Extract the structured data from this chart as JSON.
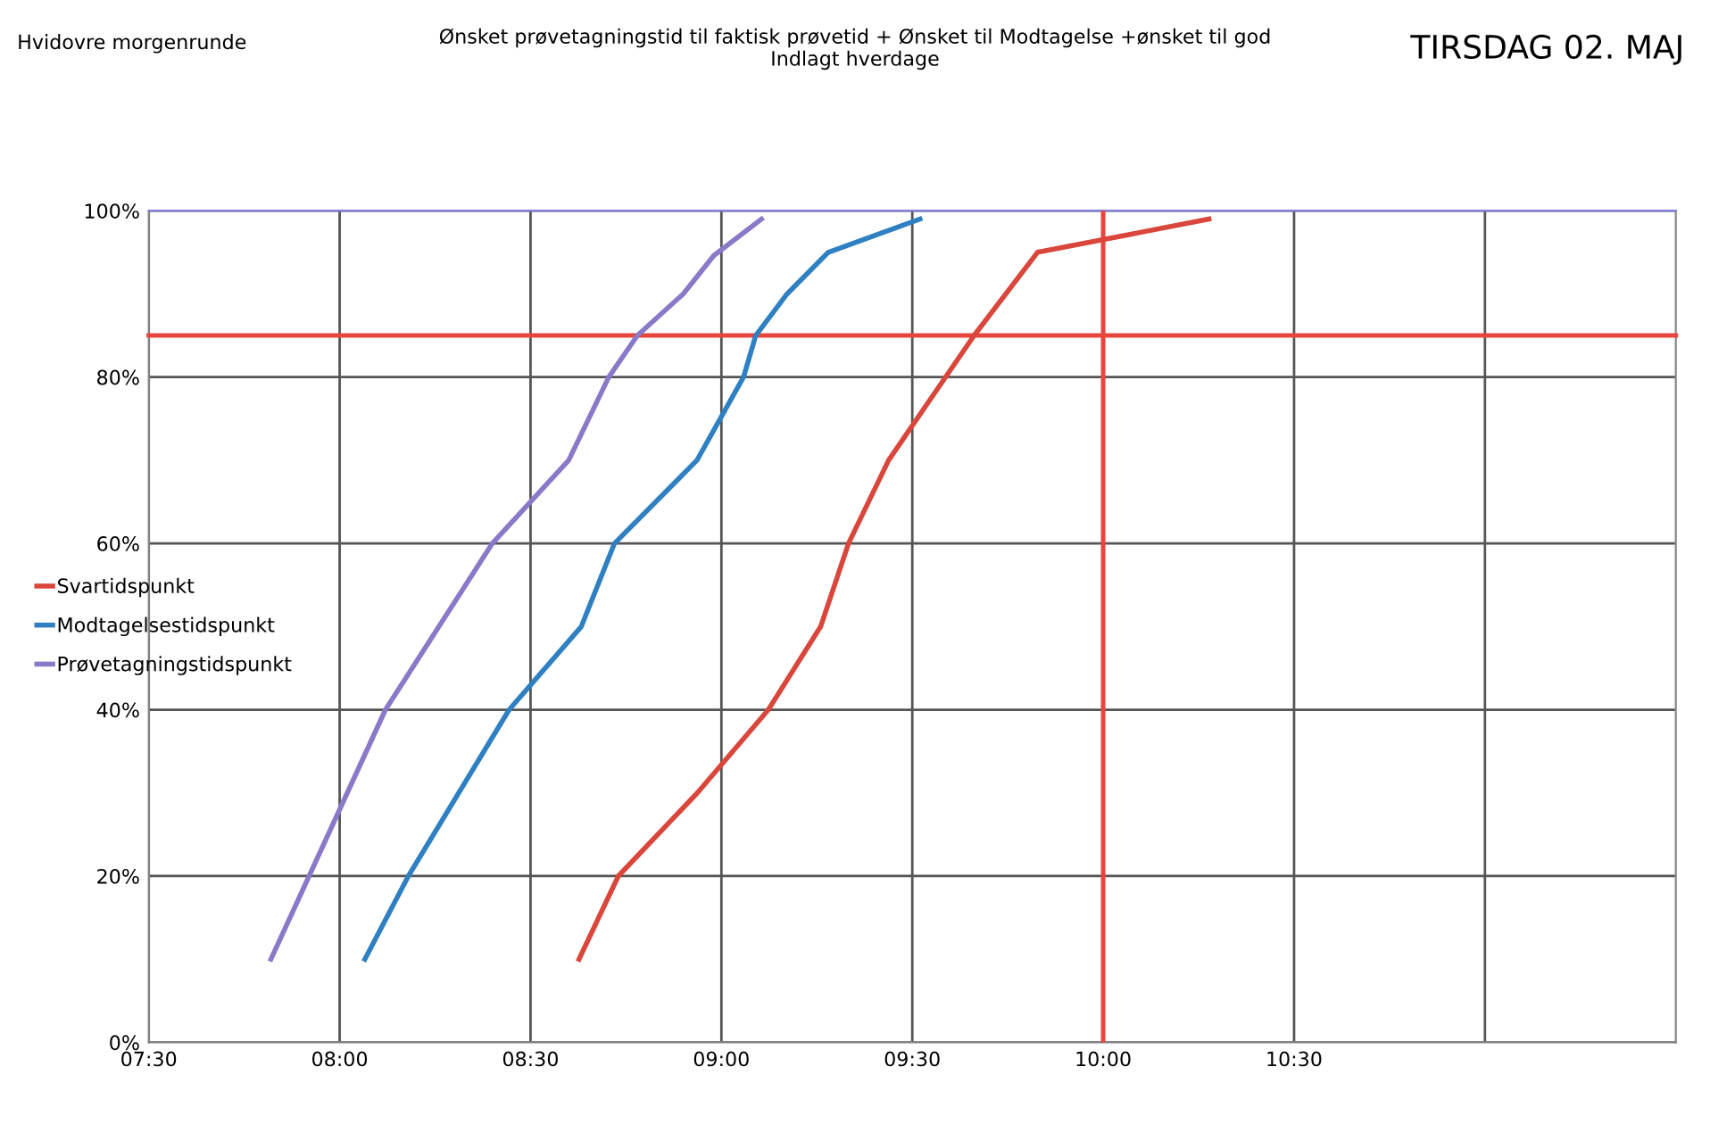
{
  "chart_data": {
    "type": "line",
    "title": "Ønsket prøvetagningstid til faktisk prøvetid + Ønsket til Modtagelse +ønsket til god\nIndlagt hverdage",
    "annotations": [
      "Hvidovre morgenrunde",
      "TIRSDAG 02. MAJ"
    ],
    "series": [
      {
        "name": "Svartidspunkt",
        "color": "#d9463b",
        "x": [
          8.627,
          8.73,
          8.937,
          9.123,
          9.26,
          9.333,
          9.438,
          9.662,
          9.828,
          10.277
        ],
        "values": [
          10,
          20,
          30,
          40,
          50,
          60,
          70,
          85,
          95,
          99
        ]
      },
      {
        "name": "Modtagelsestidspunkt",
        "color": "#2f80c2",
        "x": [
          8.066,
          8.18,
          8.444,
          8.633,
          8.72,
          8.936,
          9.058,
          9.09,
          9.172,
          9.28,
          9.52
        ],
        "values": [
          10,
          20,
          40,
          50,
          60,
          70,
          80,
          85,
          90,
          95,
          99
        ]
      },
      {
        "name": "Prøvetagningstidspunkt",
        "color": "#8a78c8",
        "x": [
          7.82,
          8.12,
          8.4,
          8.6,
          8.705,
          8.78,
          8.9,
          8.98,
          9.105
        ],
        "values": [
          10,
          40,
          60,
          70,
          80,
          85,
          90,
          94.6,
          99
        ]
      }
    ],
    "xlim": [
      7.5,
      11.5
    ],
    "xticks": [
      {
        "value": 7.5,
        "label": "07:30"
      },
      {
        "value": 8,
        "label": "08:00"
      },
      {
        "value": 8.5,
        "label": "08:30"
      },
      {
        "value": 9,
        "label": "09:00"
      },
      {
        "value": 9.5,
        "label": "09:30"
      },
      {
        "value": 10,
        "label": "10:00"
      },
      {
        "value": 10.5,
        "label": "10:30"
      },
      {
        "value": 11,
        "label": null
      }
    ],
    "ylim": [
      0,
      100
    ],
    "yticks": [
      {
        "value": 0,
        "label": "0%"
      },
      {
        "value": 20,
        "label": "20%"
      },
      {
        "value": 40,
        "label": "40%"
      },
      {
        "value": 60,
        "label": "60%"
      },
      {
        "value": 80,
        "label": "80%"
      },
      {
        "value": 100,
        "label": "100%"
      }
    ],
    "ref_lines": [
      {
        "axis": "y",
        "value": 85,
        "color": "#e8453c"
      },
      {
        "axis": "x",
        "value": 10,
        "color": "#e8453c"
      }
    ],
    "grid": true,
    "legend": "left",
    "marker": "none",
    "line_style": "solid"
  }
}
